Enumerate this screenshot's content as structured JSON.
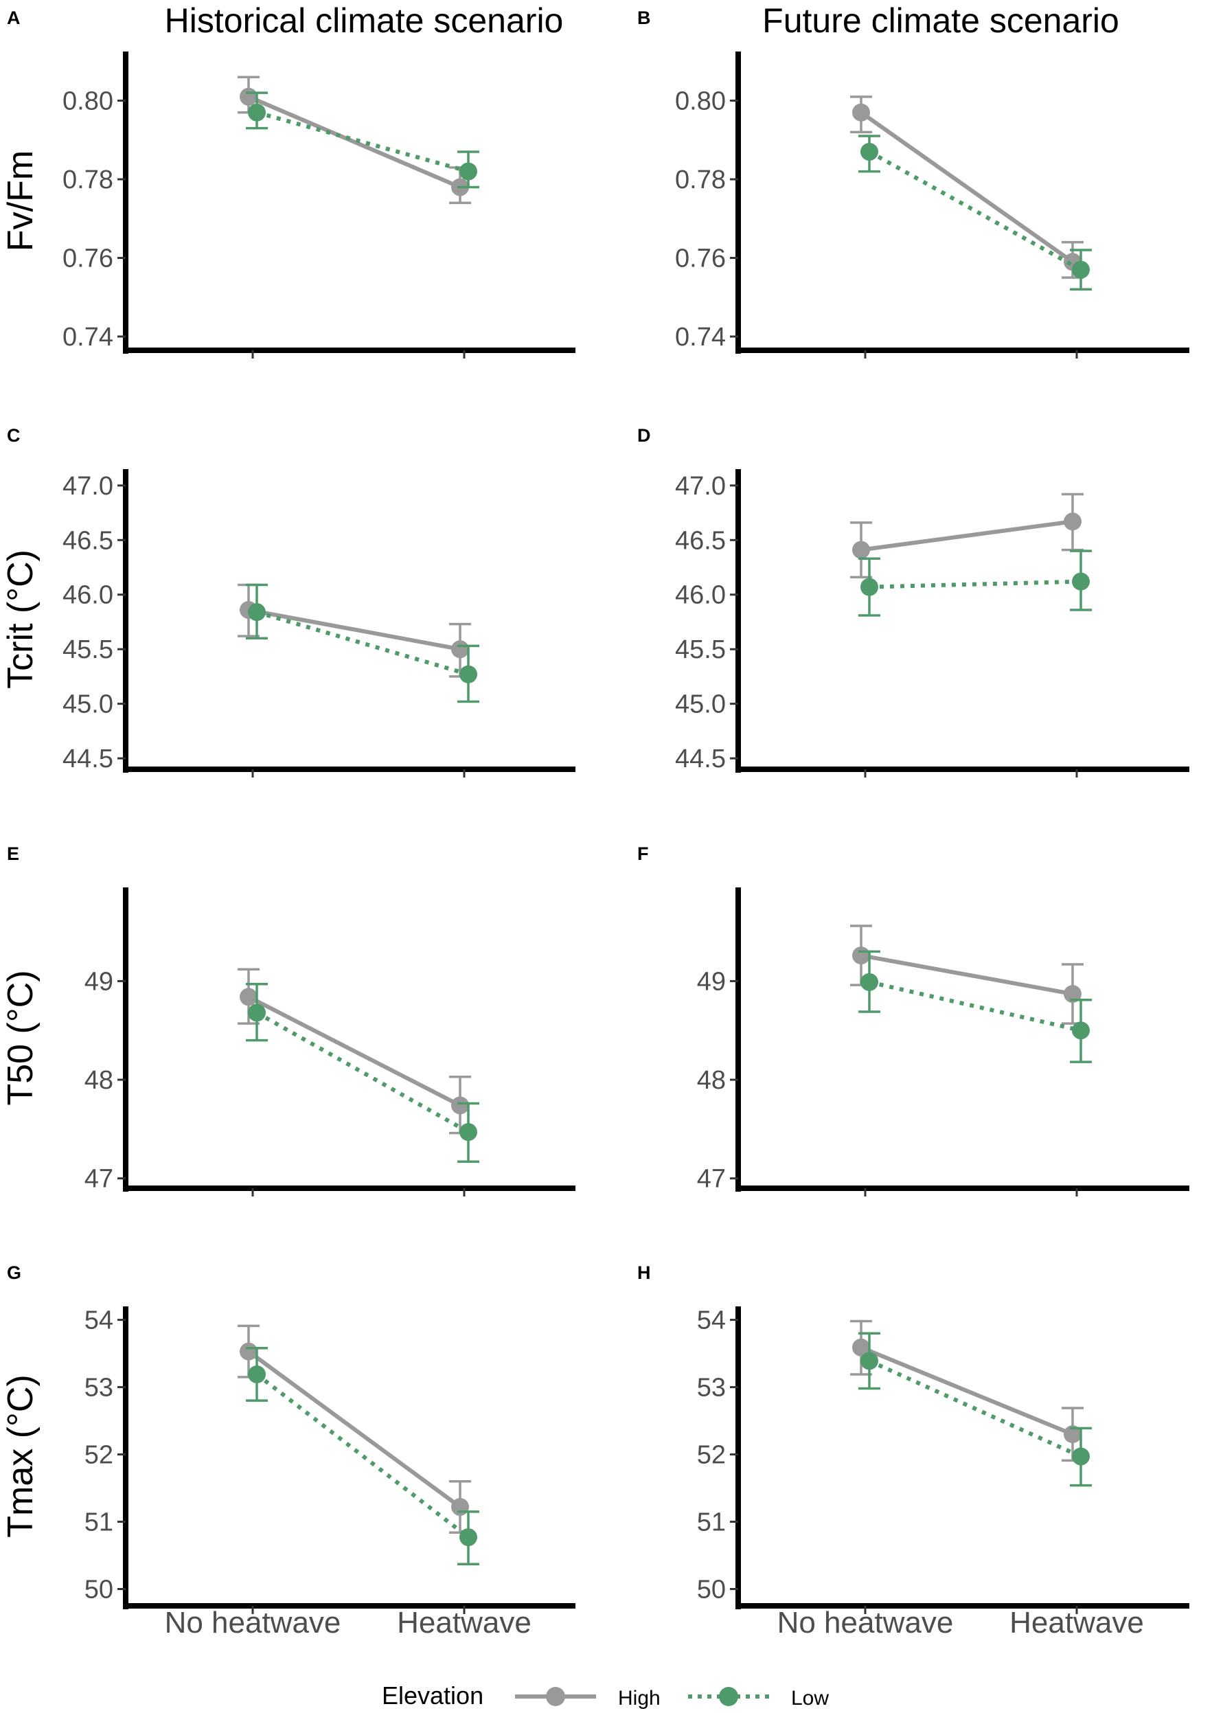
{
  "figure": {
    "column_titles": [
      "Historical climate scenario",
      "Future climate scenario"
    ],
    "legend": {
      "title": "Elevation",
      "entries": [
        {
          "label": "High",
          "color": "#999999",
          "line": "solid"
        },
        {
          "label": "Low",
          "color": "#4f9a6b",
          "line": "dotted"
        }
      ]
    }
  },
  "chart_data": [
    {
      "panel": "A",
      "type": "line",
      "scenario": "Historical climate scenario",
      "ylabel": "Fv/Fm",
      "xlabel": "",
      "categories": [
        "No heatwave",
        "Heatwave"
      ],
      "yticks": [
        "0.74",
        "0.76",
        "0.78",
        "0.80"
      ],
      "ylim": [
        0.7365,
        0.8125
      ],
      "series": [
        {
          "name": "High",
          "values": [
            0.801,
            0.778
          ],
          "lower": [
            0.797,
            0.774
          ],
          "upper": [
            0.806,
            0.783
          ]
        },
        {
          "name": "Low",
          "values": [
            0.797,
            0.782
          ],
          "lower": [
            0.793,
            0.778
          ],
          "upper": [
            0.802,
            0.787
          ]
        }
      ]
    },
    {
      "panel": "B",
      "type": "line",
      "scenario": "Future climate scenario",
      "ylabel": "",
      "xlabel": "",
      "categories": [
        "No heatwave",
        "Heatwave"
      ],
      "yticks": [
        "0.74",
        "0.76",
        "0.78",
        "0.80"
      ],
      "ylim": [
        0.7365,
        0.8125
      ],
      "series": [
        {
          "name": "High",
          "values": [
            0.797,
            0.759
          ],
          "lower": [
            0.792,
            0.755
          ],
          "upper": [
            0.801,
            0.764
          ]
        },
        {
          "name": "Low",
          "values": [
            0.787,
            0.757
          ],
          "lower": [
            0.782,
            0.752
          ],
          "upper": [
            0.791,
            0.762
          ]
        }
      ]
    },
    {
      "panel": "C",
      "type": "line",
      "scenario": "Historical climate scenario",
      "ylabel": "Tcrit (°C)",
      "xlabel": "",
      "categories": [
        "No heatwave",
        "Heatwave"
      ],
      "yticks": [
        "44.5",
        "45.0",
        "45.5",
        "46.0",
        "46.5",
        "47.0"
      ],
      "ylim": [
        44.4,
        47.15
      ],
      "series": [
        {
          "name": "High",
          "values": [
            45.86,
            45.5
          ],
          "lower": [
            45.62,
            45.25
          ],
          "upper": [
            46.09,
            45.73
          ]
        },
        {
          "name": "Low",
          "values": [
            45.84,
            45.27
          ],
          "lower": [
            45.6,
            45.02
          ],
          "upper": [
            46.09,
            45.53
          ]
        }
      ]
    },
    {
      "panel": "D",
      "type": "line",
      "scenario": "Future climate scenario",
      "ylabel": "",
      "xlabel": "",
      "categories": [
        "No heatwave",
        "Heatwave"
      ],
      "yticks": [
        "44.5",
        "45.0",
        "45.5",
        "46.0",
        "46.5",
        "47.0"
      ],
      "ylim": [
        44.4,
        47.15
      ],
      "series": [
        {
          "name": "High",
          "values": [
            46.41,
            46.67
          ],
          "lower": [
            46.16,
            46.41
          ],
          "upper": [
            46.66,
            46.92
          ]
        },
        {
          "name": "Low",
          "values": [
            46.07,
            46.12
          ],
          "lower": [
            45.81,
            45.86
          ],
          "upper": [
            46.33,
            46.4
          ]
        }
      ]
    },
    {
      "panel": "E",
      "type": "line",
      "scenario": "Historical climate scenario",
      "ylabel": "T50 (°C)",
      "xlabel": "",
      "categories": [
        "No heatwave",
        "Heatwave"
      ],
      "yticks": [
        "47",
        "48",
        "49"
      ],
      "ylim": [
        46.9,
        49.95
      ],
      "series": [
        {
          "name": "High",
          "values": [
            48.84,
            47.74
          ],
          "lower": [
            48.57,
            47.46
          ],
          "upper": [
            49.12,
            48.03
          ]
        },
        {
          "name": "Low",
          "values": [
            48.68,
            47.47
          ],
          "lower": [
            48.4,
            47.17
          ],
          "upper": [
            48.97,
            47.76
          ]
        }
      ]
    },
    {
      "panel": "F",
      "type": "line",
      "scenario": "Future climate scenario",
      "ylabel": "",
      "xlabel": "",
      "categories": [
        "No heatwave",
        "Heatwave"
      ],
      "yticks": [
        "47",
        "48",
        "49"
      ],
      "ylim": [
        46.9,
        49.95
      ],
      "series": [
        {
          "name": "High",
          "values": [
            49.26,
            48.87
          ],
          "lower": [
            48.96,
            48.57
          ],
          "upper": [
            49.56,
            49.17
          ]
        },
        {
          "name": "Low",
          "values": [
            48.99,
            48.5
          ],
          "lower": [
            48.69,
            48.18
          ],
          "upper": [
            49.3,
            48.81
          ]
        }
      ]
    },
    {
      "panel": "G",
      "type": "line",
      "scenario": "Historical climate scenario",
      "ylabel": "Tmax (°C)",
      "xlabel": "",
      "categories": [
        "No heatwave",
        "Heatwave"
      ],
      "yticks": [
        "50",
        "51",
        "52",
        "53",
        "54"
      ],
      "ylim": [
        49.75,
        54.2
      ],
      "series": [
        {
          "name": "High",
          "values": [
            53.53,
            51.22
          ],
          "lower": [
            53.15,
            50.84
          ],
          "upper": [
            53.91,
            51.6
          ]
        },
        {
          "name": "Low",
          "values": [
            53.19,
            50.77
          ],
          "lower": [
            52.8,
            50.37
          ],
          "upper": [
            53.58,
            51.15
          ]
        }
      ]
    },
    {
      "panel": "H",
      "type": "line",
      "scenario": "Future climate scenario",
      "ylabel": "",
      "xlabel": "",
      "categories": [
        "No heatwave",
        "Heatwave"
      ],
      "yticks": [
        "50",
        "51",
        "52",
        "53",
        "54"
      ],
      "ylim": [
        49.75,
        54.2
      ],
      "series": [
        {
          "name": "High",
          "values": [
            53.59,
            52.3
          ],
          "lower": [
            53.19,
            51.91
          ],
          "upper": [
            53.98,
            52.69
          ]
        },
        {
          "name": "Low",
          "values": [
            53.39,
            51.97
          ],
          "lower": [
            52.98,
            51.54
          ],
          "upper": [
            53.8,
            52.39
          ]
        }
      ]
    }
  ]
}
